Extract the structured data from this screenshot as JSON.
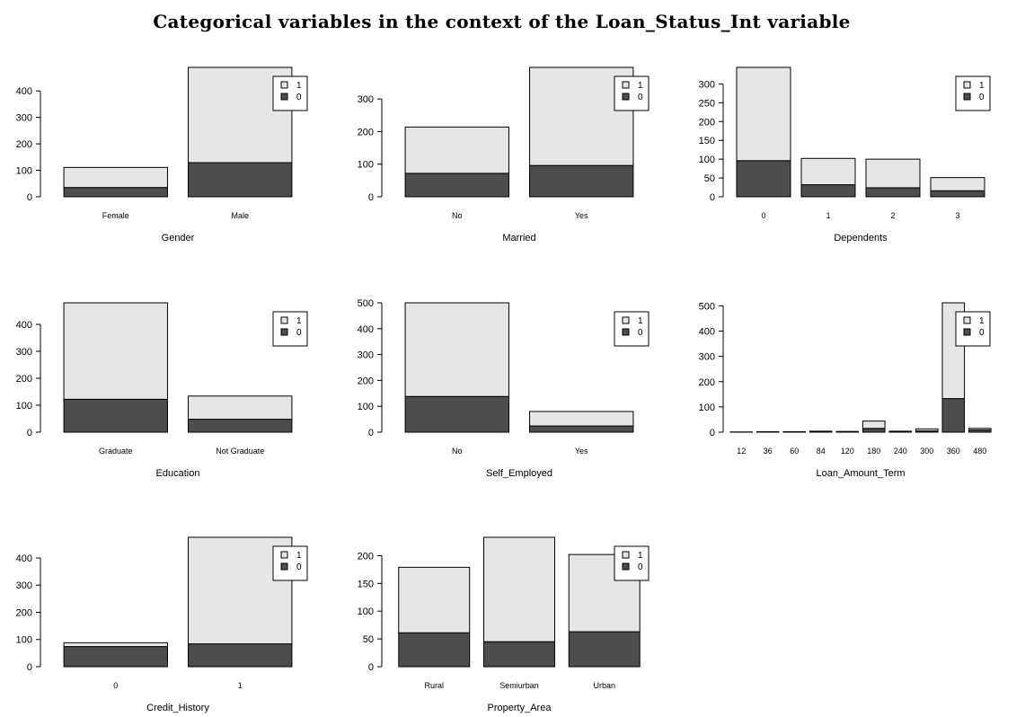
{
  "title": "Categorical variables in the context of the Loan_Status_Int variable",
  "colors": {
    "status_1": "#e6e6e6",
    "status_0": "#4d4d4d",
    "outline": "#000000"
  },
  "chart_data": [
    {
      "type": "bar",
      "stacked": true,
      "xlabel": "Gender",
      "categories": [
        "Female",
        "Male"
      ],
      "series": [
        {
          "name": "0",
          "values": [
            35,
            129
          ]
        },
        {
          "name": "1",
          "values": [
            76,
            360
          ]
        }
      ],
      "yticks": [
        0,
        100,
        200,
        300,
        400
      ],
      "ylim": [
        0,
        489
      ],
      "legend": "top-right"
    },
    {
      "type": "bar",
      "stacked": true,
      "xlabel": "Married",
      "categories": [
        "No",
        "Yes"
      ],
      "series": [
        {
          "name": "0",
          "values": [
            72,
            96
          ]
        },
        {
          "name": "1",
          "values": [
            142,
            301
          ]
        }
      ],
      "yticks": [
        0,
        100,
        200,
        300
      ],
      "ylim": [
        0,
        397
      ],
      "legend": "top-right"
    },
    {
      "type": "bar",
      "stacked": true,
      "xlabel": "Dependents",
      "categories": [
        "0",
        "1",
        "2",
        "3"
      ],
      "series": [
        {
          "name": "0",
          "values": [
            96,
            32,
            24,
            16
          ]
        },
        {
          "name": "1",
          "values": [
            248,
            70,
            76,
            35
          ]
        }
      ],
      "yticks": [
        0,
        50,
        100,
        150,
        200,
        250,
        300
      ],
      "ylim": [
        0,
        344
      ],
      "legend": "top-right"
    },
    {
      "type": "bar",
      "stacked": true,
      "xlabel": "Education",
      "categories": [
        "Graduate",
        "Not Graduate"
      ],
      "series": [
        {
          "name": "0",
          "values": [
            122,
            48
          ]
        },
        {
          "name": "1",
          "values": [
            358,
            86
          ]
        }
      ],
      "yticks": [
        0,
        100,
        200,
        300,
        400
      ],
      "ylim": [
        0,
        480
      ],
      "legend": "top-right"
    },
    {
      "type": "bar",
      "stacked": true,
      "xlabel": "Self_Employed",
      "categories": [
        "No",
        "Yes"
      ],
      "series": [
        {
          "name": "0",
          "values": [
            138,
            24
          ]
        },
        {
          "name": "1",
          "values": [
            362,
            56
          ]
        }
      ],
      "yticks": [
        0,
        100,
        200,
        300,
        400,
        500
      ],
      "ylim": [
        0,
        500
      ],
      "legend": "top-right"
    },
    {
      "type": "bar",
      "stacked": true,
      "xlabel": "Loan_Amount_Term",
      "categories": [
        "12",
        "36",
        "60",
        "84",
        "120",
        "180",
        "240",
        "300",
        "360",
        "480"
      ],
      "series": [
        {
          "name": "0",
          "values": [
            0,
            2,
            0,
            1,
            0,
            15,
            1,
            5,
            133,
            9
          ]
        },
        {
          "name": "1",
          "values": [
            1,
            0,
            2,
            3,
            3,
            29,
            3,
            8,
            379,
            6
          ]
        }
      ],
      "yticks": [
        0,
        100,
        200,
        300,
        400,
        500
      ],
      "ylim": [
        0,
        512
      ],
      "legend": "top-right"
    },
    {
      "type": "bar",
      "stacked": true,
      "xlabel": "Credit_History",
      "categories": [
        "0",
        "1"
      ],
      "series": [
        {
          "name": "0",
          "values": [
            74,
            84
          ]
        },
        {
          "name": "1",
          "values": [
            14,
            392
          ]
        }
      ],
      "yticks": [
        0,
        100,
        200,
        300,
        400
      ],
      "ylim": [
        0,
        476
      ],
      "legend": "top-right"
    },
    {
      "type": "bar",
      "stacked": true,
      "xlabel": "Property_Area",
      "categories": [
        "Rural",
        "Semiurban",
        "Urban"
      ],
      "series": [
        {
          "name": "0",
          "values": [
            61,
            45,
            63
          ]
        },
        {
          "name": "1",
          "values": [
            118,
            188,
            139
          ]
        }
      ],
      "yticks": [
        0,
        50,
        100,
        150,
        200
      ],
      "ylim": [
        0,
        233
      ],
      "legend": "top-right"
    }
  ]
}
